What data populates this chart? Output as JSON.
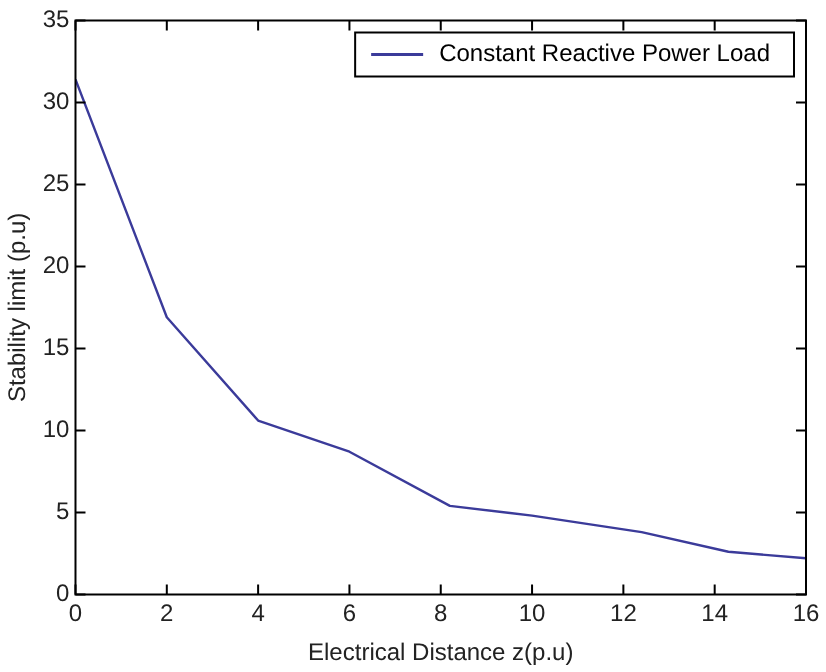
{
  "chart_data": {
    "type": "line",
    "xlabel": "Electrical Distance z(p.u)",
    "ylabel": "Stability limit (p.u)",
    "x": [
      0,
      2,
      4,
      6,
      8.2,
      10,
      12.4,
      14.3,
      16
    ],
    "series": [
      {
        "name": "Constant Reactive Power Load",
        "color": "#3b3b9a",
        "values": [
          31.4,
          16.9,
          10.6,
          8.7,
          5.4,
          4.8,
          3.8,
          2.6,
          2.2
        ]
      }
    ],
    "xlim": [
      0,
      16
    ],
    "xticks": [
      0,
      2,
      4,
      6,
      8,
      10,
      12,
      14,
      16
    ],
    "ylim": [
      0,
      35
    ],
    "yticks": [
      0,
      5,
      10,
      15,
      20,
      25,
      30,
      35
    ],
    "grid": false,
    "legend": "top right",
    "marker": "none",
    "line_style": "solid"
  }
}
